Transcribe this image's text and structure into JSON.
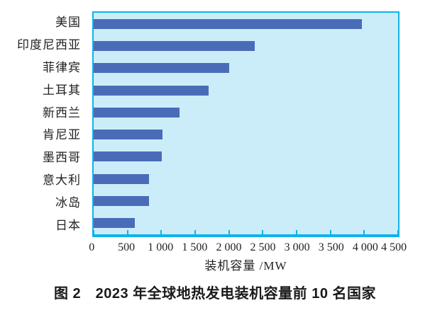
{
  "figure": {
    "caption": "图 2　2023 年全球地热发电装机容量前 10 名国家"
  },
  "chart_data": {
    "type": "bar",
    "orientation": "horizontal",
    "title": "图 2　2023 年全球地热发电装机容量前 10 名国家",
    "categories": [
      "美国",
      "印度尼西亚",
      "菲律宾",
      "土耳其",
      "新西兰",
      "肯尼亚",
      "墨西哥",
      "意大利",
      "冰岛",
      "日本"
    ],
    "values": [
      3965,
      2380,
      2000,
      1700,
      1270,
      1020,
      1005,
      820,
      820,
      610
    ],
    "xlabel": "装机容量 /MW",
    "ylabel": "",
    "xlim": [
      0,
      4500
    ],
    "xticks": [
      0,
      500,
      1000,
      1500,
      2000,
      2500,
      3000,
      3500,
      4000,
      4500
    ],
    "xtick_labels": [
      "0",
      "500",
      "1 000",
      "1 500",
      "2 000",
      "2 500",
      "3 000",
      "3 500",
      "4 000",
      "4 500"
    ],
    "grid": false,
    "legend_position": "none",
    "colors": {
      "bar": "#4a6cb8",
      "plot_background": "#cbedf9",
      "axis_border": "#10b2e9",
      "text": "#231f20",
      "page_background": "#ffffff"
    }
  }
}
